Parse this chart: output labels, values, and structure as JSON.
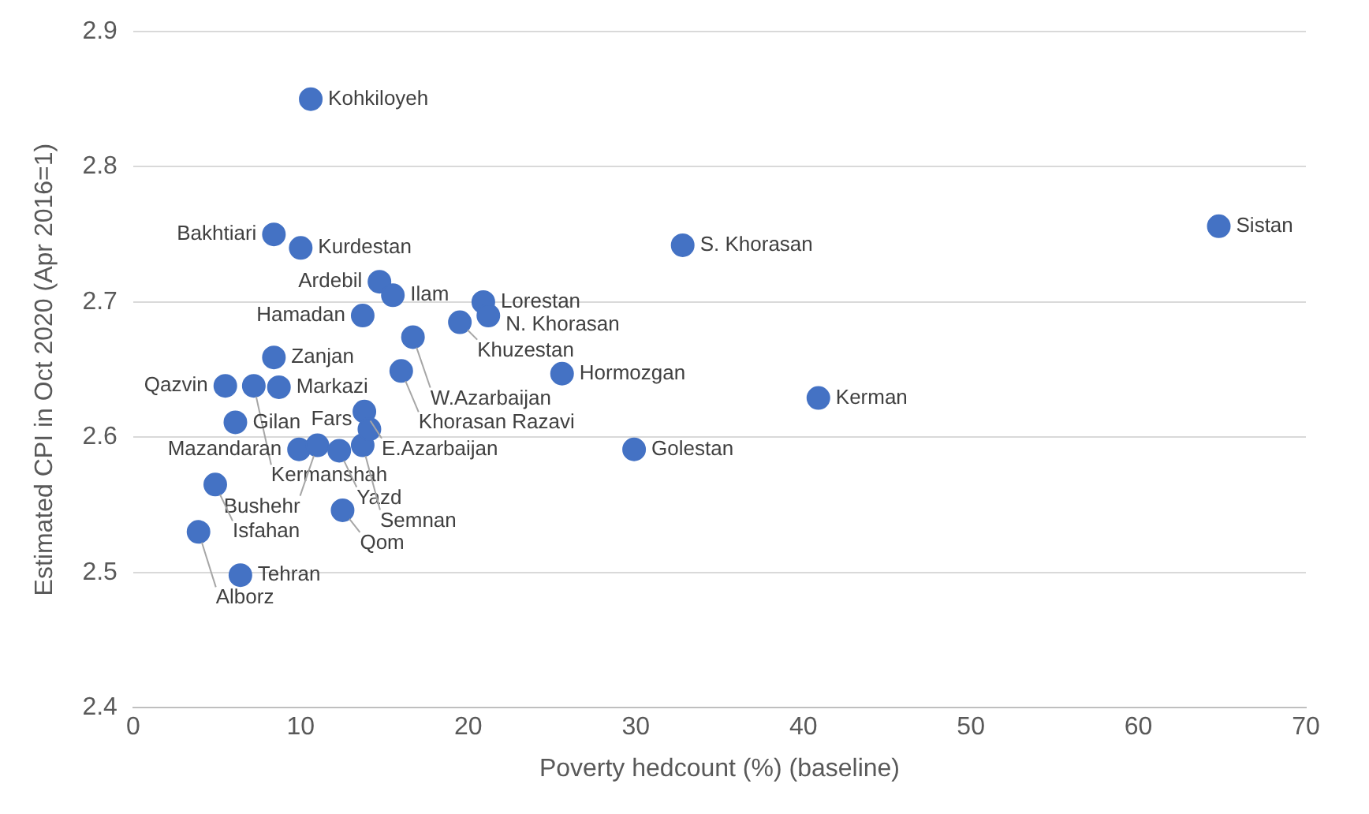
{
  "chart_data": {
    "type": "scatter",
    "xlabel": "Poverty hedcount (%) (baseline)",
    "ylabel": "Estimated CPI in Oct 2020 (Apr 2016=1)",
    "x": [
      10.6,
      8.4,
      10.0,
      14.7,
      15.5,
      13.7,
      20.9,
      21.2,
      19.5,
      16.7,
      16.0,
      25.6,
      8.4,
      7.2,
      8.7,
      5.5,
      6.1,
      9.9,
      11.0,
      12.3,
      13.7,
      13.8,
      14.1,
      4.9,
      3.9,
      12.5,
      6.4,
      29.9,
      32.8,
      40.9,
      64.8
    ],
    "values": [
      2.85,
      2.75,
      2.74,
      2.715,
      2.705,
      2.69,
      2.7,
      2.69,
      2.685,
      2.674,
      2.649,
      2.647,
      2.659,
      2.638,
      2.637,
      2.638,
      2.611,
      2.591,
      2.594,
      2.59,
      2.594,
      2.619,
      2.606,
      2.565,
      2.53,
      2.546,
      2.498,
      2.591,
      2.742,
      2.629,
      2.756
    ],
    "color": "#4472c4",
    "marker": "circle",
    "grid": "y",
    "legend": false,
    "xlim": [
      0,
      70
    ],
    "xticks": [
      0,
      10,
      20,
      30,
      40,
      50,
      60,
      70
    ],
    "ylim": [
      2.4,
      2.9
    ],
    "yticks": [
      {
        "value": 2.4,
        "label": "2.4"
      },
      {
        "value": 2.5,
        "label": "2.5"
      },
      {
        "value": 2.6,
        "label": "2.6"
      },
      {
        "value": 2.7,
        "label": "2.7"
      },
      {
        "value": 2.8,
        "label": "2.8"
      },
      {
        "value": 2.9,
        "label": "2.9"
      }
    ],
    "annotations": [
      {
        "text": "Kohkiloyeh",
        "x": 10.6,
        "y": 2.85
      },
      {
        "text": "Bakhtiari",
        "x": 8.4,
        "y": 2.75
      },
      {
        "text": "Kurdestan",
        "x": 10.0,
        "y": 2.74
      },
      {
        "text": "Ardebil",
        "x": 14.7,
        "y": 2.715
      },
      {
        "text": "Ilam",
        "x": 15.5,
        "y": 2.705
      },
      {
        "text": "Hamadan",
        "x": 13.7,
        "y": 2.69
      },
      {
        "text": "Lorestan",
        "x": 20.9,
        "y": 2.7
      },
      {
        "text": "N. Khorasan",
        "x": 21.2,
        "y": 2.69
      },
      {
        "text": "Khuzestan",
        "x": 19.5,
        "y": 2.685
      },
      {
        "text": "W.Azarbaijan",
        "x": 16.7,
        "y": 2.674
      },
      {
        "text": "Khorasan Razavi",
        "x": 16.0,
        "y": 2.649
      },
      {
        "text": "Hormozgan",
        "x": 25.6,
        "y": 2.647
      },
      {
        "text": "Zanjan",
        "x": 8.4,
        "y": 2.659
      },
      {
        "text": "Kermanshah",
        "x": 7.2,
        "y": 2.638
      },
      {
        "text": "Markazi",
        "x": 8.7,
        "y": 2.637
      },
      {
        "text": "Qazvin",
        "x": 5.5,
        "y": 2.638
      },
      {
        "text": "Gilan",
        "x": 6.1,
        "y": 2.611
      },
      {
        "text": "Mazandaran",
        "x": 9.9,
        "y": 2.591
      },
      {
        "text": "Bushehr",
        "x": 11.0,
        "y": 2.594
      },
      {
        "text": "Yazd",
        "x": 12.3,
        "y": 2.59
      },
      {
        "text": "Semnan",
        "x": 13.7,
        "y": 2.594
      },
      {
        "text": "E.Azarbaijan",
        "x": 13.8,
        "y": 2.619
      },
      {
        "text": "Fars",
        "x": 14.1,
        "y": 2.606
      },
      {
        "text": "Isfahan",
        "x": 4.9,
        "y": 2.565
      },
      {
        "text": "Alborz",
        "x": 3.9,
        "y": 2.53
      },
      {
        "text": "Qom",
        "x": 12.5,
        "y": 2.546
      },
      {
        "text": "Tehran",
        "x": 6.4,
        "y": 2.498
      },
      {
        "text": "Golestan",
        "x": 29.9,
        "y": 2.591
      },
      {
        "text": "S. Khorasan",
        "x": 32.8,
        "y": 2.742
      },
      {
        "text": "Kerman",
        "x": 40.9,
        "y": 2.629
      },
      {
        "text": "Sistan",
        "x": 64.8,
        "y": 2.756
      }
    ]
  }
}
